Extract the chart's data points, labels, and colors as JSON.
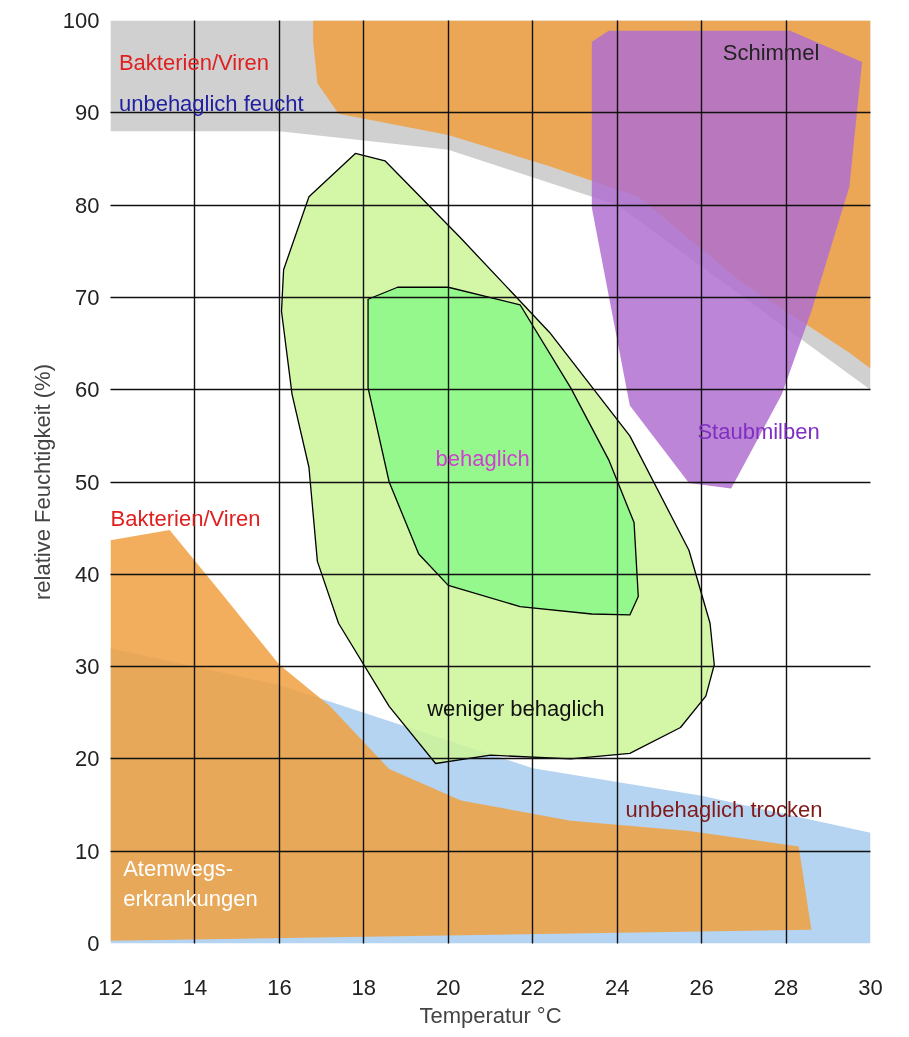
{
  "chart_data": {
    "type": "area",
    "xlabel": "Temperatur °C",
    "ylabel": "relative Feuchtigkeit (%)",
    "xlim": [
      12,
      30
    ],
    "ylim": [
      0,
      100
    ],
    "xticks": [
      12,
      14,
      16,
      18,
      20,
      22,
      24,
      26,
      28,
      30
    ],
    "yticks": [
      0,
      10,
      20,
      30,
      40,
      50,
      60,
      70,
      80,
      90,
      100
    ],
    "grid": true,
    "series": [
      {
        "color": "#c8c8c8",
        "x": [
          12,
          30,
          30,
          27,
          24,
          20,
          16,
          12
        ],
        "values": [
          100,
          100,
          60,
          70,
          80,
          86,
          88,
          88
        ]
      },
      {
        "color": "#a8cdef",
        "x": [
          12,
          30,
          30,
          26,
          22,
          18,
          16,
          12
        ],
        "values": [
          0,
          0,
          12,
          16,
          19,
          25,
          28,
          32
        ]
      },
      {
        "color": "#f0a040",
        "x": [
          16.8,
          16.8,
          30,
          30,
          29.5,
          26.9,
          24.5,
          22.4,
          20,
          17.4,
          16.9
        ],
        "values": [
          97.7,
          100,
          100,
          62.3,
          64,
          71.8,
          80.9,
          84.2,
          87.6,
          89.9,
          93.2
        ]
      },
      {
        "color": "#b070d0",
        "x": [
          23.4,
          23.4,
          24.3,
          25.7,
          26.7,
          27.9,
          28.6,
          29.5,
          29.8,
          28.1,
          23.8
        ],
        "values": [
          97.7,
          79.7,
          58.3,
          49.9,
          49.3,
          59.5,
          68.5,
          82,
          95.5,
          98.9,
          98.9
        ]
      },
      {
        "color": "#f0a040",
        "x": [
          12,
          13.4,
          14.6,
          16,
          17.2,
          18.6,
          20.3,
          22.9,
          25.7,
          28.3,
          28.6,
          12
        ],
        "values": [
          43.7,
          44.8,
          38.1,
          30.2,
          25.7,
          18.9,
          15.5,
          13.3,
          12.2,
          10.5,
          1.5,
          0.3
        ]
      },
      {
        "color": "#ccf598",
        "line_style": "solid",
        "x": [
          17.8,
          18.5,
          20.3,
          22.4,
          24.3,
          25.7,
          26.2,
          26.3,
          26.1,
          25.5,
          24.3,
          22.9,
          21,
          19.7,
          18.6,
          17.4,
          16.9,
          16.7,
          16.3,
          16.05,
          16.1,
          16.7
        ],
        "values": [
          85.6,
          84.8,
          76.4,
          66.2,
          55,
          42.6,
          34.7,
          30.2,
          26.8,
          23.4,
          20.6,
          20,
          20.4,
          19.5,
          25.7,
          34.7,
          41.4,
          51.6,
          59.5,
          68.5,
          73,
          80.9
        ]
      },
      {
        "color": "#88f888",
        "line_style": "solid",
        "x": [
          18.1,
          18.8,
          20,
          21.7,
          22.9,
          23.8,
          24.4,
          24.5,
          24.3,
          23.4,
          21.7,
          20,
          19.3,
          18.6,
          18.1,
          18.1
        ],
        "values": [
          69.8,
          71.1,
          71.1,
          69.2,
          60.2,
          52.4,
          45.6,
          37.6,
          35.6,
          35.7,
          36.5,
          38.8,
          42.2,
          50,
          60.2,
          67.1
        ]
      }
    ],
    "annotations": [
      "Bakterien/Viren",
      "unbehaglich feucht",
      "Schimmel",
      "Staubmilben",
      "behaglich",
      "Bakterien/Viren",
      "weniger behaglich",
      "unbehaglich trocken",
      "Atemwegs-\nerkrankungen"
    ]
  }
}
